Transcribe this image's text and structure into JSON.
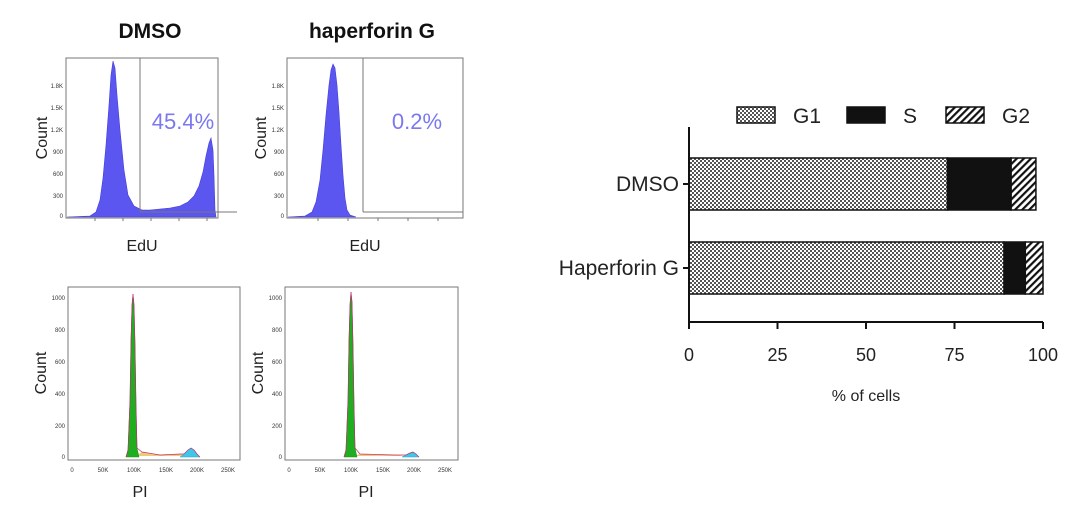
{
  "chart_data": [
    {
      "type": "area",
      "panel": "edu-dmso",
      "title": "DMSO",
      "xlabel": "EdU",
      "ylabel": "Count",
      "gate_label": "45.4%",
      "color": "#5b56f0",
      "y_tick_labels": [
        "1.8K",
        "1.5K",
        "1.2K",
        "900",
        "600",
        "300",
        "0"
      ]
    },
    {
      "type": "area",
      "panel": "edu-haperforin",
      "title": "haperforin G",
      "xlabel": "EdU",
      "ylabel": "Count",
      "gate_label": "0.2%",
      "color": "#5b56f0",
      "y_tick_labels": [
        "1.8K",
        "1.5K",
        "1.2K",
        "900",
        "600",
        "300",
        "0"
      ]
    },
    {
      "type": "area",
      "panel": "pi-dmso",
      "xlabel": "PI",
      "ylabel": "Count",
      "x_tick_labels": [
        "0",
        "50K",
        "100K",
        "150K",
        "200K",
        "250K"
      ],
      "y_tick_labels": [
        "1000",
        "800",
        "600",
        "400",
        "200",
        "0"
      ],
      "colors": {
        "g1": "#1fae1f",
        "s": "#e8b43a",
        "g2": "#3ec8e8"
      }
    },
    {
      "type": "area",
      "panel": "pi-haperforin",
      "xlabel": "PI",
      "ylabel": "Count",
      "x_tick_labels": [
        "0",
        "50K",
        "100K",
        "150K",
        "200K",
        "250K"
      ],
      "y_tick_labels": [
        "1000",
        "800",
        "600",
        "400",
        "200",
        "0"
      ],
      "colors": {
        "g1": "#1fae1f",
        "s": "#e8b43a",
        "g2": "#3ec8e8"
      }
    },
    {
      "type": "bar",
      "orientation": "horizontal",
      "stacked": true,
      "categories": [
        "DMSO",
        "Haperforin G"
      ],
      "series": [
        {
          "name": "G1",
          "values": [
            73,
            89
          ],
          "pattern": "checker"
        },
        {
          "name": "S",
          "values": [
            18,
            6
          ],
          "pattern": "solid-black"
        },
        {
          "name": "G2",
          "values": [
            7,
            5
          ],
          "pattern": "diagonal-stripes"
        }
      ],
      "xlabel": "% of cells",
      "xlim": [
        0,
        100
      ],
      "x_ticks": [
        0,
        25,
        50,
        75,
        100
      ],
      "legend": "top"
    }
  ]
}
